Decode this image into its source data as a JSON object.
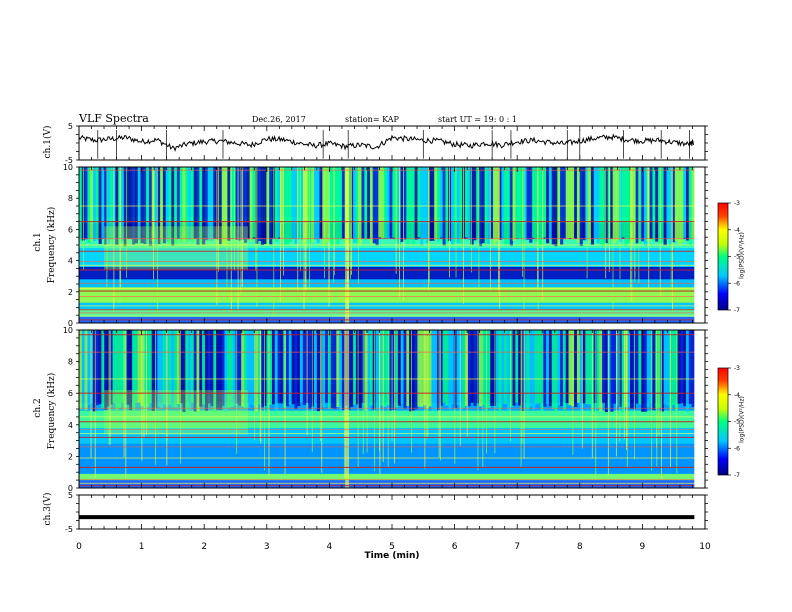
{
  "header": {
    "title": "VLF Spectra",
    "date": "Dec.26, 2017",
    "station": "station= KAP",
    "start": "start  UT =   19: 0   : 1"
  },
  "chart_data": [
    {
      "type": "line",
      "panel": "ch1-waveform",
      "ylabel": "ch.1(V)",
      "ylim": [
        -5,
        5
      ],
      "yticks": [
        "5",
        "-5"
      ],
      "xlim": [
        0,
        10
      ],
      "x": [
        0.0,
        0.25,
        0.5,
        0.75,
        1.0,
        1.25,
        1.5,
        1.75,
        2.0,
        2.25,
        2.5,
        2.75,
        3.0,
        3.25,
        3.5,
        3.75,
        4.0,
        4.25,
        4.5,
        4.75,
        5.0,
        5.25,
        5.5,
        5.75,
        6.0,
        6.25,
        6.5,
        6.75,
        7.0,
        7.25,
        7.5,
        7.75,
        8.0,
        8.25,
        8.5,
        8.75,
        9.0,
        9.25,
        9.5,
        9.75,
        9.83
      ],
      "values": [
        1.5,
        0.8,
        1.2,
        1.6,
        0.4,
        0.9,
        -1.6,
        -0.2,
        0.4,
        0.6,
        0.0,
        -0.6,
        1.2,
        1.0,
        0.0,
        -0.8,
        -0.2,
        -1.0,
        -0.6,
        -1.2,
        1.6,
        1.2,
        0.8,
        0.6,
        -0.4,
        -0.8,
        0.0,
        -0.6,
        0.4,
        0.8,
        0.2,
        -0.2,
        0.6,
        1.4,
        1.8,
        1.0,
        0.6,
        0.8,
        0.2,
        -0.4,
        0.2
      ],
      "color": "#000000"
    },
    {
      "type": "heatmap",
      "panel": "ch1-spectrogram",
      "ylabel": "ch.1\nFrequency (kHz)",
      "ylim": [
        0,
        10
      ],
      "yticks": [
        "0",
        "2",
        "4",
        "6",
        "8",
        "10"
      ],
      "xlim": [
        0,
        10
      ],
      "colorbar": {
        "label": "log(PSD)(V²/Hz)",
        "range": [
          -7,
          -3
        ],
        "ticks": [
          "-3",
          "-4",
          "-5",
          "-6",
          "-7"
        ]
      }
    },
    {
      "type": "heatmap",
      "panel": "ch2-spectrogram",
      "ylabel": "ch.2\nFrequency (kHz)",
      "ylim": [
        0,
        10
      ],
      "yticks": [
        "0",
        "2",
        "4",
        "6",
        "8",
        "10"
      ],
      "xlim": [
        0,
        10
      ],
      "colorbar": {
        "label": "log(PSD)(V²/Hz)",
        "range": [
          -7,
          -3
        ],
        "ticks": [
          "-3",
          "-4",
          "-5",
          "-6",
          "-7"
        ]
      }
    },
    {
      "type": "line",
      "panel": "ch3-waveform",
      "ylabel": "ch.3(V)",
      "ylim": [
        -5,
        5
      ],
      "yticks": [
        "5",
        "-5"
      ],
      "xlim": [
        0,
        10
      ],
      "x": [
        0,
        9.83
      ],
      "values": [
        -1.5,
        -1.5
      ],
      "color": "#000000"
    }
  ],
  "xaxis": {
    "label": "Time (min)",
    "ticks": [
      "0",
      "1",
      "2",
      "3",
      "4",
      "5",
      "6",
      "7",
      "8",
      "9",
      "10"
    ]
  },
  "labels": {
    "ch1_v": "ch.1(V)",
    "ch1_f": "ch.1",
    "ch1_freq": "Frequency (kHz)",
    "ch2_f": "ch.2",
    "ch2_freq": "Frequency (kHz)",
    "ch3_v": "ch.3(V)",
    "colorbar": "log(PSD)(V²/Hz)"
  },
  "colors": {
    "spectrum_low": "#00008c",
    "spectrum_mid": "#00ffff",
    "spectrum_high": "#ffff00",
    "spectrum_top": "#c80000"
  }
}
